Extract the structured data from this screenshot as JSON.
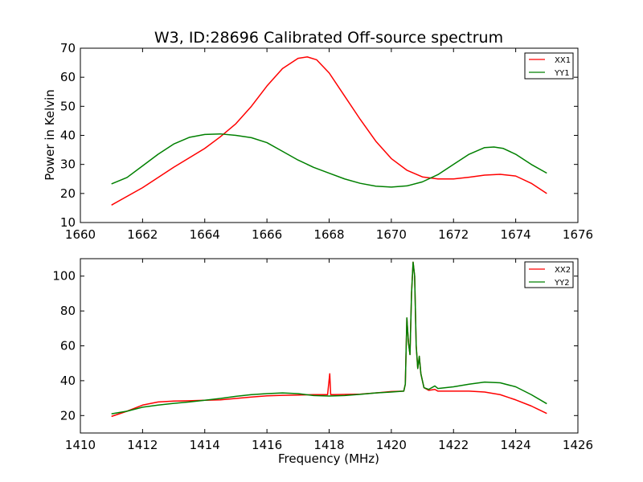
{
  "chart_data": [
    {
      "type": "line",
      "title": "W3, ID:28696 Calibrated Off-source spectrum",
      "xlabel": "",
      "ylabel": "Power in Kelvin",
      "xlim": [
        1660,
        1676
      ],
      "ylim": [
        10,
        70
      ],
      "xticks": [
        "1660",
        "1662",
        "1664",
        "1666",
        "1668",
        "1670",
        "1672",
        "1674",
        "1676"
      ],
      "yticks": [
        "10",
        "20",
        "30",
        "40",
        "50",
        "60",
        "70"
      ],
      "legend_position": "top-right",
      "grid": false,
      "series": [
        {
          "name": "XX1",
          "color": "#ff0000",
          "x": [
            1661.0,
            1662.0,
            1663.0,
            1664.0,
            1664.5,
            1665.0,
            1665.5,
            1666.0,
            1666.5,
            1667.0,
            1667.3,
            1667.6,
            1668.0,
            1668.5,
            1669.0,
            1669.5,
            1670.0,
            1670.5,
            1671.0,
            1671.5,
            1672.0,
            1672.5,
            1673.0,
            1673.5,
            1674.0,
            1674.5,
            1675.0
          ],
          "y": [
            16.0,
            22.0,
            29.0,
            35.5,
            39.5,
            44.0,
            50.0,
            57.0,
            63.0,
            66.5,
            67.0,
            66.0,
            61.5,
            53.5,
            45.5,
            38.0,
            32.0,
            28.0,
            25.7,
            25.0,
            25.0,
            25.6,
            26.3,
            26.6,
            26.0,
            23.5,
            20.0
          ]
        },
        {
          "name": "YY1",
          "color": "#008000",
          "x": [
            1661.0,
            1661.5,
            1662.0,
            1662.5,
            1663.0,
            1663.5,
            1664.0,
            1664.5,
            1665.0,
            1665.5,
            1666.0,
            1666.5,
            1667.0,
            1667.5,
            1668.0,
            1668.5,
            1669.0,
            1669.5,
            1670.0,
            1670.5,
            1671.0,
            1671.5,
            1672.0,
            1672.5,
            1673.0,
            1673.3,
            1673.6,
            1674.0,
            1674.5,
            1675.0
          ],
          "y": [
            23.3,
            25.5,
            29.5,
            33.5,
            37.0,
            39.3,
            40.3,
            40.5,
            40.0,
            39.2,
            37.5,
            34.5,
            31.5,
            29.0,
            27.0,
            25.0,
            23.5,
            22.5,
            22.2,
            22.6,
            24.0,
            26.5,
            30.0,
            33.5,
            35.8,
            36.0,
            35.5,
            33.5,
            30.0,
            27.0
          ]
        }
      ]
    },
    {
      "type": "line",
      "title": "",
      "xlabel": "Frequency (MHz)",
      "ylabel": "",
      "xlim": [
        1410,
        1426
      ],
      "ylim": [
        10,
        110
      ],
      "xticks": [
        "1410",
        "1412",
        "1414",
        "1416",
        "1418",
        "1420",
        "1422",
        "1424",
        "1426"
      ],
      "yticks": [
        "20",
        "40",
        "60",
        "80",
        "100"
      ],
      "legend_position": "top-right",
      "grid": false,
      "series": [
        {
          "name": "XX2",
          "color": "#ff0000",
          "x": [
            1411.0,
            1411.5,
            1412.0,
            1412.5,
            1413.0,
            1413.5,
            1414.0,
            1414.5,
            1415.0,
            1415.5,
            1416.0,
            1416.5,
            1417.0,
            1417.5,
            1417.95,
            1418.02,
            1418.05,
            1418.1,
            1418.5,
            1419.0,
            1419.5,
            1420.0,
            1420.4,
            1420.45,
            1420.5,
            1420.55,
            1420.6,
            1420.65,
            1420.7,
            1420.75,
            1420.8,
            1420.85,
            1420.9,
            1420.95,
            1421.0,
            1421.05,
            1421.2,
            1421.4,
            1421.5,
            1422.0,
            1422.5,
            1423.0,
            1423.5,
            1424.0,
            1424.5,
            1425.0
          ],
          "y": [
            19.5,
            22.5,
            26.0,
            27.8,
            28.3,
            28.5,
            28.8,
            29.0,
            29.8,
            30.6,
            31.3,
            31.6,
            31.8,
            32.0,
            32.0,
            44.0,
            32.0,
            32.0,
            32.1,
            32.3,
            33.0,
            33.8,
            34.0,
            38.0,
            76.0,
            62.0,
            55.0,
            90.0,
            108.0,
            100.0,
            60.0,
            47.0,
            54.0,
            44.0,
            40.0,
            36.0,
            34.5,
            35.0,
            34.0,
            34.0,
            34.0,
            33.5,
            32.0,
            29.0,
            25.5,
            21.2
          ]
        },
        {
          "name": "YY2",
          "color": "#008000",
          "x": [
            1411.0,
            1411.5,
            1412.0,
            1412.5,
            1413.0,
            1413.5,
            1414.0,
            1414.5,
            1415.0,
            1415.5,
            1416.0,
            1416.5,
            1417.0,
            1417.5,
            1418.0,
            1418.5,
            1419.0,
            1419.5,
            1420.0,
            1420.4,
            1420.45,
            1420.5,
            1420.55,
            1420.6,
            1420.65,
            1420.7,
            1420.75,
            1420.8,
            1420.85,
            1420.9,
            1420.95,
            1421.0,
            1421.05,
            1421.2,
            1421.4,
            1421.5,
            1422.0,
            1422.5,
            1423.0,
            1423.5,
            1424.0,
            1424.5,
            1425.0
          ],
          "y": [
            21.0,
            22.5,
            24.8,
            26.0,
            27.0,
            27.8,
            28.8,
            29.8,
            31.0,
            32.0,
            32.6,
            33.0,
            32.6,
            31.5,
            31.2,
            31.5,
            32.2,
            33.0,
            33.5,
            34.0,
            38.0,
            76.0,
            62.0,
            55.0,
            90.0,
            108.0,
            100.0,
            60.0,
            47.0,
            54.0,
            44.0,
            40.0,
            36.0,
            35.0,
            37.0,
            35.5,
            36.5,
            38.0,
            39.2,
            38.8,
            36.5,
            32.0,
            26.8
          ]
        }
      ]
    }
  ]
}
